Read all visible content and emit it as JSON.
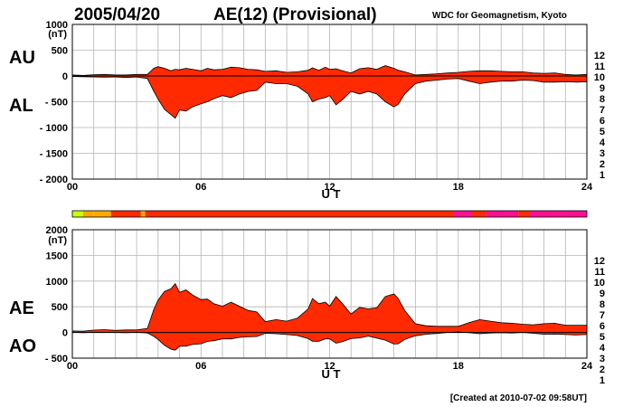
{
  "header": {
    "date": "2005/04/20",
    "title": "AE(12) (Provisional)",
    "source": "WDC for Geomagnetism, Kyoto"
  },
  "footer": {
    "created": "[Created at 2010-07-02 09:58UT]"
  },
  "colors": {
    "fill": "#ff2a00",
    "grid": "#b4b4b4",
    "stations": [
      "#aaaaaa",
      "#777777",
      "#000000",
      "#ff00cc",
      "#9900cc",
      "#3300cc",
      "#0066ff",
      "#00ddff",
      "#00ff66",
      "#ccff00",
      "#ffaa00",
      "#ff2a00",
      "#ff1090"
    ]
  },
  "station_scale": [
    "12",
    "11",
    "10",
    "9",
    "8",
    "7",
    "6",
    "5",
    "4",
    "3",
    "2",
    "1"
  ],
  "station_bar": [
    {
      "start": 0.0,
      "end": 0.5,
      "count": 9
    },
    {
      "start": 0.5,
      "end": 1.0,
      "count": 10
    },
    {
      "start": 1.0,
      "end": 1.8,
      "count": 10
    },
    {
      "start": 1.8,
      "end": 3.2,
      "count": 11
    },
    {
      "start": 3.2,
      "end": 3.4,
      "count": 10
    },
    {
      "start": 3.4,
      "end": 17.8,
      "count": 11
    },
    {
      "start": 17.8,
      "end": 18.6,
      "count": 12
    },
    {
      "start": 18.6,
      "end": 19.3,
      "count": 11
    },
    {
      "start": 19.3,
      "end": 20.8,
      "count": 12
    },
    {
      "start": 20.8,
      "end": 21.3,
      "count": 11
    },
    {
      "start": 21.3,
      "end": 24.0,
      "count": 12
    }
  ],
  "chart_data": [
    {
      "type": "area",
      "xlabel": "U T",
      "ylabel": "(nT)",
      "xlim": [
        0,
        24
      ],
      "ylim": [
        -2000,
        1000
      ],
      "xticks": [
        "00",
        "06",
        "12",
        "18",
        "24"
      ],
      "yticks": [
        "1000",
        "500",
        "0",
        "- 500",
        "- 1000",
        "- 1500",
        "- 2000"
      ],
      "series_labels": [
        "AU",
        "AL"
      ],
      "x": [
        0,
        0.5,
        1,
        1.5,
        2,
        2.5,
        3,
        3.5,
        3.8,
        4,
        4.3,
        4.6,
        4.8,
        5,
        5.3,
        5.6,
        6,
        6.3,
        6.6,
        7,
        7.4,
        7.8,
        8.2,
        8.6,
        9,
        9.5,
        10,
        10.5,
        11,
        11.2,
        11.5,
        11.8,
        12,
        12.3,
        12.6,
        13,
        13.4,
        13.8,
        14.2,
        14.6,
        15,
        15.2,
        15.5,
        16,
        16.5,
        17,
        17.5,
        18,
        18.5,
        19,
        19.5,
        20,
        20.5,
        21,
        21.5,
        22,
        22.5,
        23,
        23.5,
        24
      ],
      "au": [
        20,
        10,
        25,
        30,
        20,
        20,
        30,
        30,
        150,
        180,
        150,
        100,
        130,
        120,
        150,
        130,
        100,
        150,
        120,
        130,
        170,
        160,
        130,
        120,
        90,
        100,
        70,
        80,
        110,
        160,
        110,
        170,
        130,
        140,
        100,
        60,
        140,
        160,
        130,
        200,
        150,
        110,
        80,
        20,
        30,
        40,
        60,
        70,
        90,
        100,
        100,
        90,
        80,
        80,
        60,
        50,
        60,
        30,
        20,
        30
      ],
      "al": [
        -10,
        -15,
        -20,
        -25,
        -20,
        -30,
        -20,
        -50,
        -300,
        -450,
        -650,
        -750,
        -820,
        -660,
        -680,
        -600,
        -540,
        -500,
        -440,
        -380,
        -420,
        -350,
        -300,
        -280,
        -120,
        -150,
        -150,
        -200,
        -350,
        -500,
        -450,
        -420,
        -380,
        -560,
        -460,
        -300,
        -350,
        -300,
        -350,
        -500,
        -600,
        -550,
        -350,
        -150,
        -100,
        -80,
        -60,
        -50,
        -100,
        -150,
        -120,
        -100,
        -100,
        -80,
        -90,
        -120,
        -120,
        -110,
        -120,
        -110
      ]
    },
    {
      "type": "area",
      "xlabel": "U T",
      "ylabel": "(nT)",
      "xlim": [
        0,
        24
      ],
      "ylim": [
        -500,
        2000
      ],
      "xticks": [
        "00",
        "06",
        "12",
        "18",
        "24"
      ],
      "yticks": [
        "2000",
        "1500",
        "1000",
        "500",
        "0",
        "- 500"
      ],
      "series_labels": [
        "AE",
        "AO"
      ],
      "x": [
        0,
        0.5,
        1,
        1.5,
        2,
        2.5,
        3,
        3.5,
        3.8,
        4,
        4.3,
        4.6,
        4.8,
        5,
        5.3,
        5.6,
        6,
        6.3,
        6.6,
        7,
        7.4,
        7.8,
        8.2,
        8.6,
        9,
        9.5,
        10,
        10.5,
        11,
        11.2,
        11.5,
        11.8,
        12,
        12.3,
        12.6,
        13,
        13.4,
        13.8,
        14.2,
        14.6,
        15,
        15.2,
        15.5,
        16,
        16.5,
        17,
        17.5,
        18,
        18.5,
        19,
        19.5,
        20,
        20.5,
        21,
        21.5,
        22,
        22.5,
        23,
        23.5,
        24
      ],
      "ae": [
        30,
        25,
        45,
        55,
        40,
        50,
        50,
        80,
        450,
        630,
        800,
        850,
        950,
        780,
        830,
        730,
        640,
        650,
        560,
        510,
        590,
        510,
        430,
        400,
        210,
        250,
        220,
        280,
        460,
        660,
        560,
        590,
        510,
        700,
        560,
        360,
        490,
        460,
        480,
        700,
        750,
        660,
        430,
        170,
        130,
        120,
        120,
        120,
        190,
        250,
        220,
        190,
        180,
        160,
        150,
        170,
        180,
        140,
        140,
        140
      ],
      "ao": [
        5,
        -3,
        3,
        3,
        0,
        -5,
        5,
        -10,
        -75,
        -135,
        -250,
        -325,
        -345,
        -270,
        -265,
        -235,
        -220,
        -175,
        -160,
        -125,
        -125,
        -95,
        -85,
        -80,
        -15,
        -25,
        -40,
        -60,
        -120,
        -170,
        -170,
        -125,
        -125,
        -210,
        -180,
        -120,
        -105,
        -70,
        -110,
        -150,
        -225,
        -220,
        -135,
        -65,
        -35,
        -20,
        0,
        10,
        -5,
        -25,
        -10,
        -5,
        -10,
        0,
        -15,
        -35,
        -30,
        -40,
        -50,
        -40
      ]
    }
  ]
}
